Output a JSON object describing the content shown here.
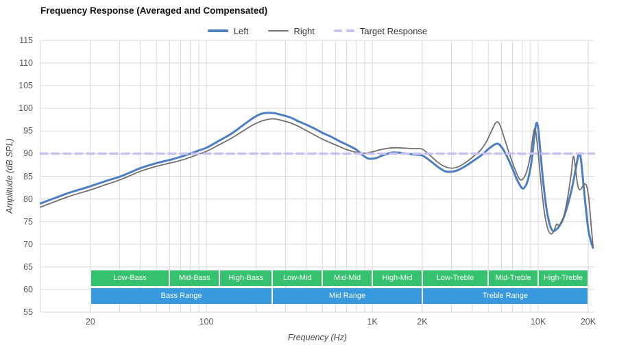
{
  "title": "Frequency Response (Averaged and Compensated)",
  "legend": [
    {
      "label": "Left",
      "swatch": "line-thick",
      "color": "#4d7ebf"
    },
    {
      "label": "Right",
      "swatch": "line-thin",
      "color": "#6e6e6e"
    },
    {
      "label": "Target Response",
      "swatch": "dashed",
      "color": "#c6c2f2"
    }
  ],
  "colors": {
    "grid": "#d9d9d9",
    "left_curve": "#4d7ebf",
    "right_curve": "#6e6e6e",
    "target_line": "#c6c2f2",
    "band_green": "#35c16e",
    "band_blue": "#3899dc",
    "tick_text": "#595959"
  },
  "bands": {
    "sub": [
      {
        "label": "Low-Bass",
        "f1": 20,
        "f2": 60
      },
      {
        "label": "Mid-Bass",
        "f1": 60,
        "f2": 120
      },
      {
        "label": "High-Bass",
        "f1": 120,
        "f2": 250
      },
      {
        "label": "Low-Mid",
        "f1": 250,
        "f2": 500
      },
      {
        "label": "Mid-Mid",
        "f1": 500,
        "f2": 1000
      },
      {
        "label": "High-Mid",
        "f1": 1000,
        "f2": 2000
      },
      {
        "label": "Low-Treble",
        "f1": 2000,
        "f2": 5000
      },
      {
        "label": "Mid-Treble",
        "f1": 5000,
        "f2": 10000
      },
      {
        "label": "High-Treble",
        "f1": 10000,
        "f2": 20000
      }
    ],
    "main": [
      {
        "label": "Bass Range",
        "f1": 20,
        "f2": 250
      },
      {
        "label": "Mid Range",
        "f1": 250,
        "f2": 2000
      },
      {
        "label": "Treble Range",
        "f1": 2000,
        "f2": 20000
      }
    ]
  },
  "chart_data": {
    "type": "line",
    "title": "Frequency Response (Averaged and Compensated)",
    "xlabel": "Frequency (Hz)",
    "ylabel": "Amplitude (dB SPL)",
    "x_scale": "log",
    "xlim": [
      10,
      21800
    ],
    "ylim": [
      55,
      115
    ],
    "grid": true,
    "legend_position": "top-center",
    "x_ticks": [
      {
        "label": "20",
        "f": 20
      },
      {
        "label": "100",
        "f": 100
      },
      {
        "label": "1K",
        "f": 1000
      },
      {
        "label": "2K",
        "f": 2000
      },
      {
        "label": "10K",
        "f": 10000
      },
      {
        "label": "20K",
        "f": 20000
      }
    ],
    "y_ticks": [
      115,
      110,
      105,
      100,
      95,
      90,
      85,
      80,
      75,
      70,
      65,
      60,
      55
    ],
    "series": [
      {
        "name": "Left",
        "color": "#4d7ebf",
        "width": 3,
        "dash": null,
        "points": [
          [
            10,
            79.0
          ],
          [
            12,
            80.1
          ],
          [
            15,
            81.4
          ],
          [
            20,
            82.8
          ],
          [
            25,
            84.0
          ],
          [
            30,
            84.9
          ],
          [
            35,
            85.9
          ],
          [
            40,
            86.8
          ],
          [
            50,
            87.9
          ],
          [
            60,
            88.6
          ],
          [
            70,
            89.3
          ],
          [
            80,
            90.0
          ],
          [
            90,
            90.7
          ],
          [
            100,
            91.3
          ],
          [
            120,
            92.9
          ],
          [
            140,
            94.3
          ],
          [
            160,
            95.8
          ],
          [
            180,
            97.2
          ],
          [
            200,
            98.3
          ],
          [
            220,
            98.9
          ],
          [
            250,
            99.0
          ],
          [
            280,
            98.6
          ],
          [
            320,
            98.0
          ],
          [
            360,
            97.1
          ],
          [
            400,
            96.4
          ],
          [
            450,
            95.5
          ],
          [
            500,
            94.6
          ],
          [
            560,
            93.8
          ],
          [
            630,
            92.8
          ],
          [
            700,
            92.0
          ],
          [
            800,
            90.9
          ],
          [
            880,
            89.6
          ],
          [
            950,
            88.9
          ],
          [
            1050,
            89.0
          ],
          [
            1150,
            89.6
          ],
          [
            1300,
            90.2
          ],
          [
            1450,
            90.2
          ],
          [
            1600,
            90.0
          ],
          [
            1800,
            89.8
          ],
          [
            2000,
            89.6
          ],
          [
            2200,
            88.6
          ],
          [
            2500,
            87.0
          ],
          [
            2750,
            86.1
          ],
          [
            3000,
            86.0
          ],
          [
            3300,
            86.4
          ],
          [
            3700,
            87.4
          ],
          [
            4100,
            88.5
          ],
          [
            4600,
            89.8
          ],
          [
            5000,
            91.0
          ],
          [
            5400,
            91.9
          ],
          [
            5700,
            92.2
          ],
          [
            6000,
            91.5
          ],
          [
            6400,
            89.8
          ],
          [
            6900,
            87.2
          ],
          [
            7400,
            84.5
          ],
          [
            7900,
            82.6
          ],
          [
            8200,
            82.4
          ],
          [
            8600,
            83.8
          ],
          [
            9000,
            87.0
          ],
          [
            9300,
            91.0
          ],
          [
            9600,
            95.5
          ],
          [
            9800,
            96.8
          ],
          [
            10000,
            95.5
          ],
          [
            10300,
            90.5
          ],
          [
            10700,
            84.0
          ],
          [
            11200,
            78.0
          ],
          [
            11700,
            74.5
          ],
          [
            12200,
            73.0
          ],
          [
            12800,
            73.2
          ],
          [
            13400,
            74.0
          ],
          [
            14200,
            75.8
          ],
          [
            15000,
            78.5
          ],
          [
            16000,
            82.5
          ],
          [
            16800,
            86.5
          ],
          [
            17400,
            89.4
          ],
          [
            17800,
            90.0
          ],
          [
            18200,
            88.0
          ],
          [
            18700,
            83.5
          ],
          [
            19300,
            78.5
          ],
          [
            20000,
            73.5
          ],
          [
            20700,
            70.8
          ],
          [
            21400,
            69.2
          ]
        ]
      },
      {
        "name": "Right",
        "color": "#6e6e6e",
        "width": 1.8,
        "dash": null,
        "points": [
          [
            10,
            78.2
          ],
          [
            12,
            79.3
          ],
          [
            15,
            80.6
          ],
          [
            20,
            82.0
          ],
          [
            25,
            83.2
          ],
          [
            30,
            84.2
          ],
          [
            35,
            85.2
          ],
          [
            40,
            86.1
          ],
          [
            50,
            87.2
          ],
          [
            60,
            87.9
          ],
          [
            70,
            88.5
          ],
          [
            80,
            89.2
          ],
          [
            90,
            89.9
          ],
          [
            100,
            90.5
          ],
          [
            120,
            92.0
          ],
          [
            140,
            93.3
          ],
          [
            160,
            94.6
          ],
          [
            180,
            95.8
          ],
          [
            200,
            96.7
          ],
          [
            220,
            97.3
          ],
          [
            250,
            97.7
          ],
          [
            280,
            97.4
          ],
          [
            320,
            96.8
          ],
          [
            360,
            96.0
          ],
          [
            400,
            95.1
          ],
          [
            450,
            94.1
          ],
          [
            500,
            93.2
          ],
          [
            560,
            92.4
          ],
          [
            630,
            91.6
          ],
          [
            700,
            90.9
          ],
          [
            800,
            90.3
          ],
          [
            900,
            90.1
          ],
          [
            1000,
            90.4
          ],
          [
            1100,
            90.8
          ],
          [
            1250,
            91.2
          ],
          [
            1400,
            91.3
          ],
          [
            1600,
            91.2
          ],
          [
            1800,
            91.1
          ],
          [
            2000,
            91.0
          ],
          [
            2200,
            89.8
          ],
          [
            2500,
            88.0
          ],
          [
            2750,
            87.1
          ],
          [
            3000,
            86.8
          ],
          [
            3300,
            87.1
          ],
          [
            3700,
            88.2
          ],
          [
            4100,
            89.5
          ],
          [
            4500,
            90.8
          ],
          [
            4900,
            92.8
          ],
          [
            5200,
            94.8
          ],
          [
            5500,
            96.6
          ],
          [
            5700,
            97.0
          ],
          [
            5900,
            96.2
          ],
          [
            6200,
            93.8
          ],
          [
            6700,
            90.0
          ],
          [
            7200,
            86.8
          ],
          [
            7600,
            84.8
          ],
          [
            7900,
            84.2
          ],
          [
            8300,
            85.0
          ],
          [
            8700,
            87.2
          ],
          [
            9000,
            90.0
          ],
          [
            9300,
            94.0
          ],
          [
            9500,
            95.5
          ],
          [
            9700,
            94.5
          ],
          [
            10000,
            90.0
          ],
          [
            10400,
            83.5
          ],
          [
            10900,
            77.0
          ],
          [
            11400,
            73.5
          ],
          [
            11900,
            72.3
          ],
          [
            12400,
            72.8
          ],
          [
            12900,
            74.4
          ],
          [
            13400,
            74.2
          ],
          [
            14200,
            76.0
          ],
          [
            15000,
            80.0
          ],
          [
            15800,
            85.5
          ],
          [
            16300,
            89.4
          ],
          [
            16800,
            86.5
          ],
          [
            17300,
            83.0
          ],
          [
            17800,
            82.0
          ],
          [
            18400,
            82.6
          ],
          [
            19000,
            83.3
          ],
          [
            19600,
            82.8
          ],
          [
            20200,
            80.0
          ],
          [
            20800,
            74.5
          ],
          [
            21400,
            69.5
          ]
        ]
      },
      {
        "name": "Target Response",
        "color": "#c6c2f2",
        "width": 3.5,
        "dash": "10 7",
        "points": [
          [
            10,
            90
          ],
          [
            21800,
            90
          ]
        ]
      }
    ]
  }
}
